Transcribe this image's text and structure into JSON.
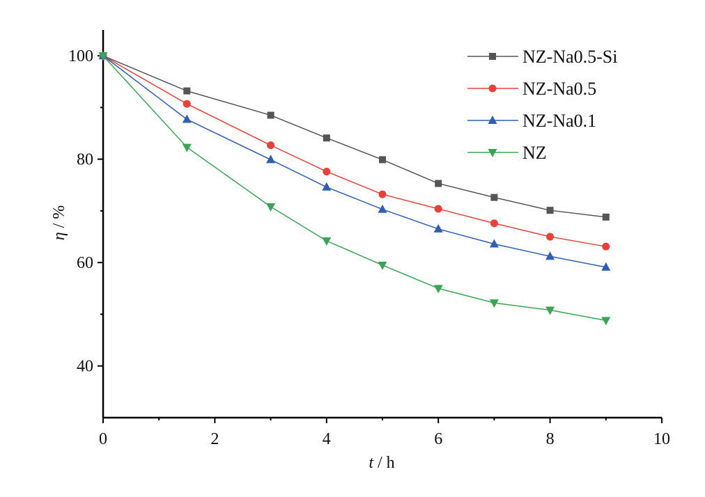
{
  "chart_data": {
    "type": "line",
    "title": "",
    "xlabel_var": "t",
    "xlabel_unit": " / h",
    "ylabel_var": "η",
    "ylabel_unit": " / %",
    "xlim": [
      0,
      10
    ],
    "ylim": [
      30,
      105
    ],
    "xticks": [
      0,
      2,
      4,
      6,
      8,
      10
    ],
    "yticks": [
      40,
      60,
      80,
      100
    ],
    "grid": false,
    "legend_position": "top-right",
    "x": [
      0,
      1.5,
      3,
      4,
      5,
      6,
      7,
      8,
      9
    ],
    "series": [
      {
        "name": "NZ-Na0.5-Si",
        "color": "#555555",
        "marker": "square",
        "values": [
          100,
          93.2,
          88.5,
          84.1,
          79.9,
          75.3,
          72.6,
          70.1,
          68.8
        ]
      },
      {
        "name": "NZ-Na0.5",
        "color": "#e8413a",
        "marker": "circle",
        "values": [
          100,
          90.7,
          82.7,
          77.6,
          73.2,
          70.4,
          67.6,
          65.0,
          63.1
        ]
      },
      {
        "name": "NZ-Na0.1",
        "color": "#2f5fb5",
        "marker": "triangle-up",
        "values": [
          100,
          87.7,
          79.9,
          74.6,
          70.3,
          66.5,
          63.6,
          61.2,
          59.1
        ]
      },
      {
        "name": "NZ",
        "color": "#3aa655",
        "marker": "triangle-down",
        "values": [
          100,
          82.3,
          70.8,
          64.2,
          59.5,
          55.0,
          52.2,
          50.8,
          48.8
        ]
      }
    ]
  }
}
